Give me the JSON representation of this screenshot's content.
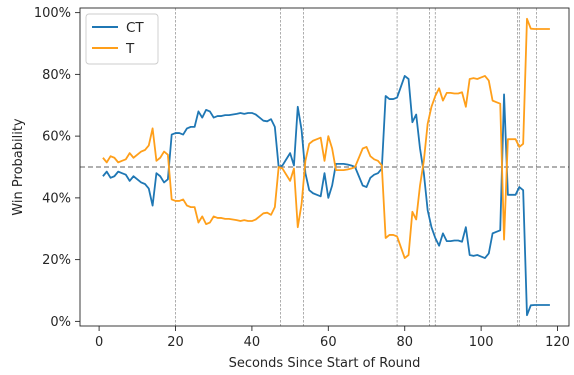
{
  "chart_data": {
    "type": "line",
    "xlabel": "Seconds Since Start of Round",
    "ylabel": "Win Probability",
    "xlim": [
      -5,
      123
    ],
    "ylim": [
      -0.015,
      1.015
    ],
    "x_ticks": [
      0,
      20,
      40,
      60,
      80,
      100,
      120
    ],
    "y_ticks": [
      0,
      0.2,
      0.4,
      0.6,
      0.8,
      1.0
    ],
    "x_tick_labels": [
      "0",
      "20",
      "40",
      "60",
      "80",
      "100",
      "120"
    ],
    "y_tick_labels": [
      "0%",
      "20%",
      "40%",
      "60%",
      "80%",
      "100%"
    ],
    "reference_line": {
      "y": 0.5,
      "color": "#808080",
      "style": "dashed"
    },
    "event_lines": [
      20,
      47.5,
      53.5,
      78,
      86.5,
      88,
      109.5,
      110,
      114.5
    ],
    "legend_position": "top-left",
    "series": [
      {
        "name": "CT",
        "color": "#1f77b4",
        "x": [
          1,
          2,
          3,
          4,
          5,
          6,
          7,
          8,
          9,
          10,
          11,
          12,
          13,
          14,
          15,
          16,
          17,
          18,
          19,
          20,
          21,
          22,
          23,
          24,
          25,
          26,
          27,
          28,
          29,
          30,
          31,
          32,
          33,
          34,
          35,
          36,
          37,
          38,
          39,
          40,
          41,
          42,
          43,
          44,
          45,
          46,
          47,
          48,
          49,
          50,
          51,
          52,
          53,
          54,
          55,
          56,
          57,
          58,
          59,
          60,
          61,
          62,
          63,
          64,
          65,
          66,
          67,
          68,
          69,
          70,
          71,
          72,
          73,
          74,
          75,
          76,
          77,
          78,
          79,
          80,
          81,
          82,
          83,
          84,
          85,
          86,
          87,
          88,
          89,
          90,
          91,
          92,
          93,
          94,
          95,
          96,
          97,
          98,
          99,
          100,
          101,
          102,
          103,
          104,
          105,
          106,
          107,
          108,
          109,
          110,
          111,
          112,
          113,
          114,
          115,
          116,
          117,
          118
        ],
        "values": [
          0.47,
          0.485,
          0.465,
          0.47,
          0.485,
          0.48,
          0.475,
          0.455,
          0.47,
          0.46,
          0.45,
          0.445,
          0.43,
          0.375,
          0.48,
          0.47,
          0.45,
          0.46,
          0.605,
          0.61,
          0.61,
          0.605,
          0.625,
          0.63,
          0.63,
          0.68,
          0.66,
          0.685,
          0.68,
          0.66,
          0.665,
          0.665,
          0.668,
          0.668,
          0.67,
          0.672,
          0.675,
          0.672,
          0.675,
          0.675,
          0.67,
          0.66,
          0.65,
          0.648,
          0.655,
          0.63,
          0.5,
          0.505,
          0.525,
          0.545,
          0.505,
          0.695,
          0.62,
          0.48,
          0.425,
          0.415,
          0.41,
          0.405,
          0.48,
          0.4,
          0.44,
          0.51,
          0.51,
          0.51,
          0.508,
          0.505,
          0.5,
          0.47,
          0.44,
          0.435,
          0.465,
          0.475,
          0.48,
          0.495,
          0.73,
          0.72,
          0.72,
          0.725,
          0.76,
          0.795,
          0.785,
          0.645,
          0.67,
          0.56,
          0.48,
          0.36,
          0.305,
          0.27,
          0.245,
          0.285,
          0.26,
          0.26,
          0.262,
          0.262,
          0.258,
          0.305,
          0.215,
          0.212,
          0.215,
          0.21,
          0.205,
          0.22,
          0.285,
          0.29,
          0.295,
          0.735,
          0.41,
          0.41,
          0.41,
          0.435,
          0.425,
          0.02,
          0.052,
          0.053,
          0.053,
          0.053,
          0.053,
          0.053
        ],
        "x_values_note": ""
      },
      {
        "name": "T",
        "color": "#ff9f1a",
        "x": [
          1,
          2,
          3,
          4,
          5,
          6,
          7,
          8,
          9,
          10,
          11,
          12,
          13,
          14,
          15,
          16,
          17,
          18,
          19,
          20,
          21,
          22,
          23,
          24,
          25,
          26,
          27,
          28,
          29,
          30,
          31,
          32,
          33,
          34,
          35,
          36,
          37,
          38,
          39,
          40,
          41,
          42,
          43,
          44,
          45,
          46,
          47,
          48,
          49,
          50,
          51,
          52,
          53,
          54,
          55,
          56,
          57,
          58,
          59,
          60,
          61,
          62,
          63,
          64,
          65,
          66,
          67,
          68,
          69,
          70,
          71,
          72,
          73,
          74,
          75,
          76,
          77,
          78,
          79,
          80,
          81,
          82,
          83,
          84,
          85,
          86,
          87,
          88,
          89,
          90,
          91,
          92,
          93,
          94,
          95,
          96,
          97,
          98,
          99,
          100,
          101,
          102,
          103,
          104,
          105,
          106,
          107,
          108,
          109,
          110,
          111,
          112,
          113,
          114,
          115,
          116,
          117,
          118
        ],
        "values": [
          0.53,
          0.515,
          0.535,
          0.53,
          0.515,
          0.52,
          0.525,
          0.545,
          0.53,
          0.54,
          0.55,
          0.555,
          0.57,
          0.625,
          0.52,
          0.53,
          0.55,
          0.54,
          0.395,
          0.39,
          0.39,
          0.395,
          0.375,
          0.37,
          0.37,
          0.32,
          0.34,
          0.315,
          0.32,
          0.34,
          0.335,
          0.335,
          0.332,
          0.332,
          0.33,
          0.328,
          0.325,
          0.328,
          0.325,
          0.325,
          0.33,
          0.34,
          0.35,
          0.352,
          0.345,
          0.37,
          0.5,
          0.495,
          0.475,
          0.455,
          0.495,
          0.305,
          0.38,
          0.52,
          0.575,
          0.585,
          0.59,
          0.595,
          0.52,
          0.6,
          0.56,
          0.49,
          0.49,
          0.49,
          0.492,
          0.495,
          0.5,
          0.53,
          0.56,
          0.565,
          0.535,
          0.525,
          0.52,
          0.505,
          0.27,
          0.28,
          0.28,
          0.275,
          0.24,
          0.205,
          0.215,
          0.355,
          0.33,
          0.44,
          0.52,
          0.64,
          0.695,
          0.73,
          0.755,
          0.715,
          0.74,
          0.74,
          0.738,
          0.738,
          0.742,
          0.695,
          0.785,
          0.788,
          0.785,
          0.79,
          0.795,
          0.78,
          0.715,
          0.71,
          0.705,
          0.265,
          0.59,
          0.59,
          0.59,
          0.565,
          0.575,
          0.98,
          0.948,
          0.947,
          0.947,
          0.947,
          0.947,
          0.947
        ]
      }
    ]
  }
}
